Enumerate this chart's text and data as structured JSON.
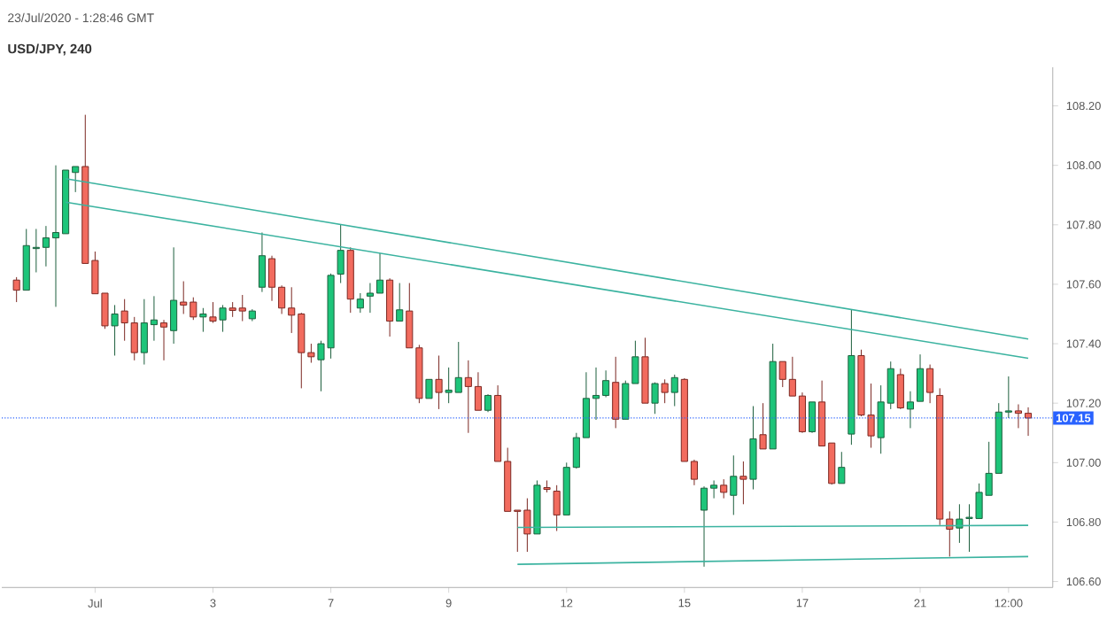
{
  "chart_data": {
    "type": "candlestick",
    "title": "USD/JPY, 240",
    "annotations": [
      "23/Jul/2020 - 1:28:46 GMT"
    ],
    "categories": [
      null,
      null,
      null,
      null,
      null,
      null,
      null,
      null,
      "Jul",
      null,
      null,
      null,
      null,
      null,
      null,
      null,
      null,
      null,
      null,
      null,
      "3",
      null,
      null,
      null,
      null,
      null,
      null,
      null,
      null,
      null,
      null,
      null,
      "7",
      null,
      null,
      null,
      null,
      null,
      null,
      null,
      null,
      null,
      null,
      null,
      "9",
      null,
      null,
      null,
      null,
      null,
      null,
      null,
      null,
      null,
      null,
      null,
      "12",
      null,
      null,
      null,
      null,
      null,
      null,
      null,
      null,
      null,
      null,
      null,
      "15",
      null,
      null,
      null,
      null,
      null,
      null,
      null,
      null,
      null,
      null,
      null,
      "17",
      null,
      null,
      null,
      null,
      null,
      null,
      null,
      null,
      null,
      null,
      null,
      "21",
      null,
      null,
      null,
      null,
      null,
      null,
      null,
      null,
      "12:00",
      null,
      null
    ],
    "ohlc": [
      [
        107.614,
        107.624,
        107.54,
        107.58
      ],
      [
        107.58,
        107.786,
        107.58,
        107.73
      ],
      [
        107.72,
        107.786,
        107.64,
        107.724
      ],
      [
        107.724,
        107.796,
        107.66,
        107.756
      ],
      [
        107.756,
        108.0,
        107.524,
        107.774
      ],
      [
        107.77,
        107.984,
        107.77,
        107.984
      ],
      [
        107.976,
        107.996,
        107.91,
        107.996
      ],
      [
        107.996,
        108.17,
        107.67,
        107.67
      ],
      [
        107.68,
        107.71,
        107.568,
        107.568
      ],
      [
        107.57,
        107.57,
        107.45,
        107.46
      ],
      [
        107.46,
        107.53,
        107.36,
        107.5
      ],
      [
        107.51,
        107.55,
        107.41,
        107.47
      ],
      [
        107.47,
        107.49,
        107.344,
        107.37
      ],
      [
        107.37,
        107.55,
        107.33,
        107.47
      ],
      [
        107.464,
        107.56,
        107.41,
        107.48
      ],
      [
        107.47,
        107.48,
        107.344,
        107.456
      ],
      [
        107.444,
        107.724,
        107.4,
        107.546
      ],
      [
        107.54,
        107.61,
        107.5,
        107.53
      ],
      [
        107.54,
        107.556,
        107.48,
        107.49
      ],
      [
        107.49,
        107.52,
        107.44,
        107.5
      ],
      [
        107.49,
        107.54,
        107.47,
        107.476
      ],
      [
        107.48,
        107.53,
        107.44,
        107.52
      ],
      [
        107.52,
        107.54,
        107.49,
        107.512
      ],
      [
        107.52,
        107.564,
        107.476,
        107.51
      ],
      [
        107.484,
        107.516,
        107.476,
        107.51
      ],
      [
        107.59,
        107.774,
        107.574,
        107.696
      ],
      [
        107.686,
        107.696,
        107.544,
        107.59
      ],
      [
        107.59,
        107.596,
        107.5,
        107.52
      ],
      [
        107.52,
        107.59,
        107.436,
        107.496
      ],
      [
        107.5,
        107.504,
        107.25,
        107.37
      ],
      [
        107.37,
        107.4,
        107.336,
        107.356
      ],
      [
        107.346,
        107.41,
        107.24,
        107.4
      ],
      [
        107.386,
        107.636,
        107.35,
        107.63
      ],
      [
        107.634,
        107.8,
        107.604,
        107.714
      ],
      [
        107.714,
        107.724,
        107.504,
        107.55
      ],
      [
        107.52,
        107.57,
        107.504,
        107.55
      ],
      [
        107.56,
        107.604,
        107.504,
        107.57
      ],
      [
        107.57,
        107.704,
        107.57,
        107.614
      ],
      [
        107.614,
        107.62,
        107.424,
        107.476
      ],
      [
        107.476,
        107.604,
        107.476,
        107.514
      ],
      [
        107.51,
        107.604,
        107.386,
        107.386
      ],
      [
        107.386,
        107.396,
        107.2,
        107.216
      ],
      [
        107.216,
        107.28,
        107.216,
        107.28
      ],
      [
        107.28,
        107.36,
        107.18,
        107.236
      ],
      [
        107.236,
        107.32,
        107.2,
        107.244
      ],
      [
        107.236,
        107.406,
        107.236,
        107.286
      ],
      [
        107.286,
        107.344,
        107.1,
        107.256
      ],
      [
        107.256,
        107.304,
        107.176,
        107.176
      ],
      [
        107.176,
        107.23,
        107.17,
        107.226
      ],
      [
        107.226,
        107.26,
        107.004,
        107.004
      ],
      [
        107.004,
        107.05,
        106.836,
        106.836
      ],
      [
        106.84,
        106.84,
        106.7,
        106.836
      ],
      [
        106.84,
        106.88,
        106.7,
        106.76
      ],
      [
        106.76,
        106.94,
        106.76,
        106.924
      ],
      [
        106.916,
        106.94,
        106.9,
        106.91
      ],
      [
        106.904,
        106.924,
        106.77,
        106.824
      ],
      [
        106.824,
        107.0,
        106.824,
        106.984
      ],
      [
        106.984,
        107.1,
        106.98,
        107.084
      ],
      [
        107.084,
        107.304,
        107.084,
        107.216
      ],
      [
        107.216,
        107.32,
        107.144,
        107.226
      ],
      [
        107.226,
        107.31,
        107.22,
        107.276
      ],
      [
        107.27,
        107.356,
        107.116,
        107.146
      ],
      [
        107.146,
        107.276,
        107.146,
        107.266
      ],
      [
        107.266,
        107.41,
        107.266,
        107.356
      ],
      [
        107.356,
        107.42,
        107.2,
        107.2
      ],
      [
        107.2,
        107.27,
        107.164,
        107.266
      ],
      [
        107.266,
        107.28,
        107.2,
        107.236
      ],
      [
        107.236,
        107.296,
        107.19,
        107.286
      ],
      [
        107.28,
        107.284,
        107.004,
        107.004
      ],
      [
        107.004,
        107.01,
        106.924,
        106.944
      ],
      [
        106.84,
        106.92,
        106.65,
        106.914
      ],
      [
        106.914,
        106.94,
        106.88,
        106.924
      ],
      [
        106.924,
        106.944,
        106.88,
        106.9
      ],
      [
        106.89,
        107.024,
        106.824,
        106.954
      ],
      [
        106.954,
        107.004,
        106.86,
        106.944
      ],
      [
        106.944,
        107.19,
        106.91,
        107.08
      ],
      [
        107.094,
        107.2,
        107.046,
        107.046
      ],
      [
        107.046,
        107.4,
        107.046,
        107.34
      ],
      [
        107.34,
        107.34,
        107.254,
        107.28
      ],
      [
        107.28,
        107.356,
        107.224,
        107.224
      ],
      [
        107.224,
        107.236,
        107.1,
        107.104
      ],
      [
        107.104,
        107.204,
        107.1,
        107.204
      ],
      [
        107.204,
        107.276,
        107.056,
        107.056
      ],
      [
        107.066,
        107.066,
        106.926,
        106.93
      ],
      [
        106.93,
        107.036,
        106.93,
        106.984
      ],
      [
        107.096,
        107.514,
        107.06,
        107.36
      ],
      [
        107.36,
        107.38,
        107.156,
        107.16
      ],
      [
        107.16,
        107.266,
        107.05,
        107.09
      ],
      [
        107.084,
        107.26,
        107.03,
        107.204
      ],
      [
        107.2,
        107.34,
        107.18,
        107.316
      ],
      [
        107.296,
        107.316,
        107.18,
        107.184
      ],
      [
        107.18,
        107.24,
        107.116,
        107.204
      ],
      [
        107.206,
        107.364,
        107.206,
        107.316
      ],
      [
        107.316,
        107.33,
        107.2,
        107.236
      ],
      [
        107.226,
        107.25,
        106.79,
        106.81
      ],
      [
        106.81,
        106.836,
        106.684,
        106.776
      ],
      [
        106.78,
        106.86,
        106.73,
        106.81
      ],
      [
        106.812,
        106.86,
        106.7,
        106.816
      ],
      [
        106.812,
        106.93,
        106.812,
        106.9
      ],
      [
        106.89,
        107.07,
        106.89,
        106.964
      ],
      [
        106.964,
        107.2,
        106.964,
        107.17
      ],
      [
        107.17,
        107.29,
        107.15,
        107.174
      ],
      [
        107.174,
        107.196,
        107.116,
        107.166
      ],
      [
        107.166,
        107.186,
        107.09,
        107.15
      ]
    ],
    "series": [
      {
        "type": "line",
        "color": "#3bb3a0",
        "values": [
          null,
          null,
          null,
          null,
          null,
          107.955,
          null,
          null,
          null,
          null,
          null,
          null,
          null,
          null,
          null,
          null,
          null,
          null,
          null,
          null,
          null,
          null,
          null,
          null,
          null,
          null,
          null,
          null,
          null,
          null,
          null,
          null,
          null,
          null,
          null,
          null,
          null,
          null,
          null,
          null,
          null,
          null,
          null,
          null,
          null,
          null,
          null,
          null,
          null,
          null,
          null,
          null,
          null,
          null,
          null,
          null,
          null,
          null,
          null,
          null,
          null,
          null,
          null,
          null,
          null,
          null,
          null,
          null,
          null,
          null,
          null,
          null,
          null,
          null,
          null,
          null,
          null,
          null,
          null,
          null,
          null,
          null,
          null,
          null,
          null,
          null,
          null,
          null,
          null,
          null,
          null,
          null,
          null,
          null,
          null,
          null,
          null,
          null,
          null,
          null,
          null,
          null,
          null,
          107.416
        ]
      },
      {
        "type": "line",
        "color": "#3bb3a0",
        "values": [
          null,
          null,
          null,
          null,
          null,
          107.876,
          null,
          null,
          null,
          null,
          null,
          null,
          null,
          null,
          null,
          null,
          null,
          null,
          null,
          null,
          null,
          null,
          null,
          null,
          null,
          null,
          null,
          null,
          null,
          null,
          null,
          null,
          null,
          null,
          null,
          null,
          null,
          null,
          null,
          null,
          null,
          null,
          null,
          null,
          null,
          null,
          null,
          null,
          null,
          null,
          null,
          null,
          null,
          null,
          null,
          null,
          null,
          null,
          null,
          null,
          null,
          null,
          null,
          null,
          null,
          null,
          null,
          null,
          null,
          null,
          null,
          null,
          null,
          null,
          null,
          null,
          null,
          null,
          null,
          null,
          null,
          null,
          null,
          null,
          null,
          null,
          null,
          null,
          null,
          null,
          null,
          null,
          null,
          null,
          null,
          null,
          null,
          null,
          null,
          null,
          null,
          null,
          null,
          107.351
        ]
      },
      {
        "type": "line",
        "color": "#3bb3a0",
        "values": [
          null,
          null,
          null,
          null,
          null,
          null,
          null,
          null,
          null,
          null,
          null,
          null,
          null,
          null,
          null,
          null,
          null,
          null,
          null,
          null,
          null,
          null,
          null,
          null,
          null,
          null,
          null,
          null,
          null,
          null,
          null,
          null,
          null,
          null,
          null,
          null,
          null,
          null,
          null,
          null,
          null,
          null,
          null,
          null,
          null,
          null,
          null,
          null,
          null,
          null,
          null,
          106.782,
          null,
          null,
          null,
          null,
          null,
          null,
          null,
          null,
          null,
          null,
          null,
          null,
          null,
          null,
          null,
          null,
          null,
          null,
          null,
          null,
          null,
          null,
          null,
          null,
          null,
          null,
          null,
          null,
          null,
          null,
          null,
          null,
          null,
          null,
          null,
          null,
          null,
          null,
          null,
          null,
          null,
          null,
          null,
          null,
          null,
          null,
          null,
          null,
          null,
          null,
          null,
          106.789
        ]
      },
      {
        "type": "line",
        "color": "#3bb3a0",
        "values": [
          null,
          null,
          null,
          null,
          null,
          null,
          null,
          null,
          null,
          null,
          null,
          null,
          null,
          null,
          null,
          null,
          null,
          null,
          null,
          null,
          null,
          null,
          null,
          null,
          null,
          null,
          null,
          null,
          null,
          null,
          null,
          null,
          null,
          null,
          null,
          null,
          null,
          null,
          null,
          null,
          null,
          null,
          null,
          null,
          null,
          null,
          null,
          null,
          null,
          null,
          null,
          106.658,
          null,
          null,
          null,
          null,
          null,
          null,
          null,
          null,
          null,
          null,
          null,
          null,
          null,
          null,
          null,
          null,
          null,
          null,
          null,
          null,
          null,
          null,
          null,
          null,
          null,
          null,
          null,
          null,
          null,
          null,
          null,
          null,
          null,
          null,
          null,
          null,
          null,
          null,
          null,
          null,
          null,
          null,
          null,
          null,
          null,
          null,
          null,
          null,
          null,
          null,
          null,
          106.684
        ]
      }
    ],
    "ref_lines": [
      {
        "axis": "y",
        "value": 107.15,
        "label": "107.15",
        "color": "#2962ff",
        "line_style": "dotted"
      }
    ],
    "ylim": [
      106.58,
      108.33
    ],
    "yticks": [
      {
        "value": 106.6,
        "label": "106.60"
      },
      {
        "value": 106.8,
        "label": "106.80"
      },
      {
        "value": 107.0,
        "label": "107.00"
      },
      {
        "value": 107.2,
        "label": "107.20"
      },
      {
        "value": 107.4,
        "label": "107.40"
      },
      {
        "value": 107.6,
        "label": "107.60"
      },
      {
        "value": 107.8,
        "label": "107.80"
      },
      {
        "value": 108.0,
        "label": "108.00"
      },
      {
        "value": 108.2,
        "label": "108.20"
      }
    ]
  }
}
